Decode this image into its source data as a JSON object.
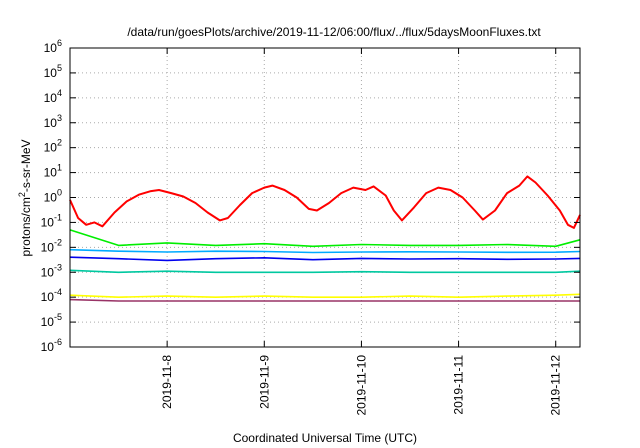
{
  "chart_data": {
    "type": "line",
    "title": "/data/run/goesPlots/archive/2019-11-12/06:00/flux/../flux/5daysMoonFluxes.txt",
    "xlabel": "Coordinated Universal Time (UTC)",
    "ylabel": "protons/cm²-s-sr-MeV",
    "ylabel_parts": [
      "protons/cm",
      "2",
      "-s-sr-MeV"
    ],
    "yscale": "log",
    "ylim": [
      1e-06,
      1000000
    ],
    "y_ticks": [
      {
        "base": "10",
        "exp": "-6"
      },
      {
        "base": "10",
        "exp": "-5"
      },
      {
        "base": "10",
        "exp": "-4"
      },
      {
        "base": "10",
        "exp": "-3"
      },
      {
        "base": "10",
        "exp": "-2"
      },
      {
        "base": "10",
        "exp": "-1"
      },
      {
        "base": "10",
        "exp": "0"
      },
      {
        "base": "10",
        "exp": "1"
      },
      {
        "base": "10",
        "exp": "2"
      },
      {
        "base": "10",
        "exp": "3"
      },
      {
        "base": "10",
        "exp": "4"
      },
      {
        "base": "10",
        "exp": "5"
      },
      {
        "base": "10",
        "exp": "6"
      }
    ],
    "xlim": [
      "2019-11-07T00:00",
      "2019-11-12T06:00"
    ],
    "x_ticks": [
      {
        "date": "2019-11-08",
        "label": "2019-11-8"
      },
      {
        "date": "2019-11-09",
        "label": "2019-11-9"
      },
      {
        "date": "2019-11-10",
        "label": "2019-11-10"
      },
      {
        "date": "2019-11-11",
        "label": "2019-11-11"
      },
      {
        "date": "2019-11-12",
        "label": "2019-11-12"
      }
    ],
    "grid": true,
    "series": [
      {
        "color": "#ff0000",
        "values": [
          [
            "2019-11-07T00:00",
            0.8
          ],
          [
            "2019-11-07T02:00",
            0.15
          ],
          [
            "2019-11-07T04:00",
            0.08
          ],
          [
            "2019-11-07T06:00",
            0.1
          ],
          [
            "2019-11-07T08:00",
            0.07
          ],
          [
            "2019-11-07T11:00",
            0.25
          ],
          [
            "2019-11-07T14:00",
            0.7
          ],
          [
            "2019-11-07T17:00",
            1.3
          ],
          [
            "2019-11-07T20:00",
            1.8
          ],
          [
            "2019-11-07T22:00",
            2.0
          ],
          [
            "2019-11-08T01:00",
            1.5
          ],
          [
            "2019-11-08T04:00",
            1.1
          ],
          [
            "2019-11-08T07:00",
            0.6
          ],
          [
            "2019-11-08T10:00",
            0.25
          ],
          [
            "2019-11-08T13:00",
            0.12
          ],
          [
            "2019-11-08T15:00",
            0.15
          ],
          [
            "2019-11-08T18:00",
            0.5
          ],
          [
            "2019-11-08T21:00",
            1.5
          ],
          [
            "2019-11-09T00:00",
            2.5
          ],
          [
            "2019-11-09T02:00",
            3.0
          ],
          [
            "2019-11-09T05:00",
            2.0
          ],
          [
            "2019-11-09T08:00",
            1.0
          ],
          [
            "2019-11-09T11:00",
            0.35
          ],
          [
            "2019-11-09T13:00",
            0.3
          ],
          [
            "2019-11-09T16:00",
            0.6
          ],
          [
            "2019-11-09T19:00",
            1.5
          ],
          [
            "2019-11-09T22:00",
            2.5
          ],
          [
            "2019-11-10T01:00",
            2.0
          ],
          [
            "2019-11-10T03:00",
            2.8
          ],
          [
            "2019-11-10T06:00",
            1.2
          ],
          [
            "2019-11-10T08:00",
            0.3
          ],
          [
            "2019-11-10T10:00",
            0.12
          ],
          [
            "2019-11-10T13:00",
            0.4
          ],
          [
            "2019-11-10T16:00",
            1.5
          ],
          [
            "2019-11-10T19:00",
            2.5
          ],
          [
            "2019-11-10T22:00",
            2.0
          ],
          [
            "2019-11-11T01:00",
            1.0
          ],
          [
            "2019-11-11T04:00",
            0.3
          ],
          [
            "2019-11-11T06:00",
            0.13
          ],
          [
            "2019-11-11T09:00",
            0.3
          ],
          [
            "2019-11-11T12:00",
            1.5
          ],
          [
            "2019-11-11T15:00",
            3.0
          ],
          [
            "2019-11-11T17:00",
            7.0
          ],
          [
            "2019-11-11T19:00",
            4.0
          ],
          [
            "2019-11-11T22:00",
            1.2
          ],
          [
            "2019-11-12T01:00",
            0.3
          ],
          [
            "2019-11-12T03:00",
            0.08
          ],
          [
            "2019-11-12T04:30",
            0.06
          ],
          [
            "2019-11-12T06:00",
            0.2
          ]
        ]
      },
      {
        "color": "#00ee00",
        "values": [
          [
            "2019-11-07T00:00",
            0.05
          ],
          [
            "2019-11-07T12:00",
            0.012
          ],
          [
            "2019-11-08T00:00",
            0.015
          ],
          [
            "2019-11-08T12:00",
            0.012
          ],
          [
            "2019-11-09T00:00",
            0.014
          ],
          [
            "2019-11-09T12:00",
            0.011
          ],
          [
            "2019-11-10T00:00",
            0.013
          ],
          [
            "2019-11-10T12:00",
            0.012
          ],
          [
            "2019-11-11T00:00",
            0.012
          ],
          [
            "2019-11-11T12:00",
            0.013
          ],
          [
            "2019-11-12T00:00",
            0.011
          ],
          [
            "2019-11-12T06:00",
            0.02
          ]
        ]
      },
      {
        "color": "#00aaff",
        "values": [
          [
            "2019-11-07T00:00",
            0.008
          ],
          [
            "2019-11-07T12:00",
            0.007
          ],
          [
            "2019-11-08T00:00",
            0.0065
          ],
          [
            "2019-11-08T12:00",
            0.007
          ],
          [
            "2019-11-09T00:00",
            0.0068
          ],
          [
            "2019-11-09T12:00",
            0.0062
          ],
          [
            "2019-11-10T00:00",
            0.0065
          ],
          [
            "2019-11-10T12:00",
            0.0066
          ],
          [
            "2019-11-11T00:00",
            0.0065
          ],
          [
            "2019-11-11T12:00",
            0.0063
          ],
          [
            "2019-11-12T00:00",
            0.0064
          ],
          [
            "2019-11-12T06:00",
            0.0068
          ]
        ]
      },
      {
        "color": "#0000ee",
        "values": [
          [
            "2019-11-07T00:00",
            0.004
          ],
          [
            "2019-11-07T12:00",
            0.0035
          ],
          [
            "2019-11-08T00:00",
            0.003
          ],
          [
            "2019-11-08T12:00",
            0.0035
          ],
          [
            "2019-11-09T00:00",
            0.0038
          ],
          [
            "2019-11-09T12:00",
            0.0032
          ],
          [
            "2019-11-10T00:00",
            0.0036
          ],
          [
            "2019-11-10T12:00",
            0.0034
          ],
          [
            "2019-11-11T00:00",
            0.0035
          ],
          [
            "2019-11-11T12:00",
            0.0033
          ],
          [
            "2019-11-12T00:00",
            0.0034
          ],
          [
            "2019-11-12T06:00",
            0.0036
          ]
        ]
      },
      {
        "color": "#00c8a0",
        "values": [
          [
            "2019-11-07T00:00",
            0.0012
          ],
          [
            "2019-11-07T12:00",
            0.001
          ],
          [
            "2019-11-08T00:00",
            0.0011
          ],
          [
            "2019-11-08T12:00",
            0.001
          ],
          [
            "2019-11-09T00:00",
            0.001
          ],
          [
            "2019-11-09T12:00",
            0.001
          ],
          [
            "2019-11-10T00:00",
            0.00105
          ],
          [
            "2019-11-10T12:00",
            0.001
          ],
          [
            "2019-11-11T00:00",
            0.001
          ],
          [
            "2019-11-11T12:00",
            0.001
          ],
          [
            "2019-11-12T00:00",
            0.001
          ],
          [
            "2019-11-12T06:00",
            0.0011
          ]
        ]
      },
      {
        "color": "#ffff00",
        "values": [
          [
            "2019-11-07T00:00",
            0.00012
          ],
          [
            "2019-11-07T12:00",
            0.0001
          ],
          [
            "2019-11-08T00:00",
            0.00011
          ],
          [
            "2019-11-08T12:00",
            0.0001
          ],
          [
            "2019-11-09T00:00",
            0.00011
          ],
          [
            "2019-11-09T12:00",
            0.0001
          ],
          [
            "2019-11-10T00:00",
            0.0001
          ],
          [
            "2019-11-10T12:00",
            0.00011
          ],
          [
            "2019-11-11T00:00",
            0.0001
          ],
          [
            "2019-11-11T12:00",
            0.00011
          ],
          [
            "2019-11-12T00:00",
            0.00012
          ],
          [
            "2019-11-12T06:00",
            0.00013
          ]
        ]
      },
      {
        "color": "#993366",
        "values": [
          [
            "2019-11-07T00:00",
            8e-05
          ],
          [
            "2019-11-07T12:00",
            7e-05
          ],
          [
            "2019-11-08T00:00",
            7e-05
          ],
          [
            "2019-11-08T12:00",
            7e-05
          ],
          [
            "2019-11-09T00:00",
            7e-05
          ],
          [
            "2019-11-09T12:00",
            7e-05
          ],
          [
            "2019-11-10T00:00",
            7e-05
          ],
          [
            "2019-11-10T12:00",
            7e-05
          ],
          [
            "2019-11-11T00:00",
            7e-05
          ],
          [
            "2019-11-11T12:00",
            7e-05
          ],
          [
            "2019-11-12T00:00",
            7e-05
          ],
          [
            "2019-11-12T06:00",
            7e-05
          ]
        ]
      }
    ]
  }
}
